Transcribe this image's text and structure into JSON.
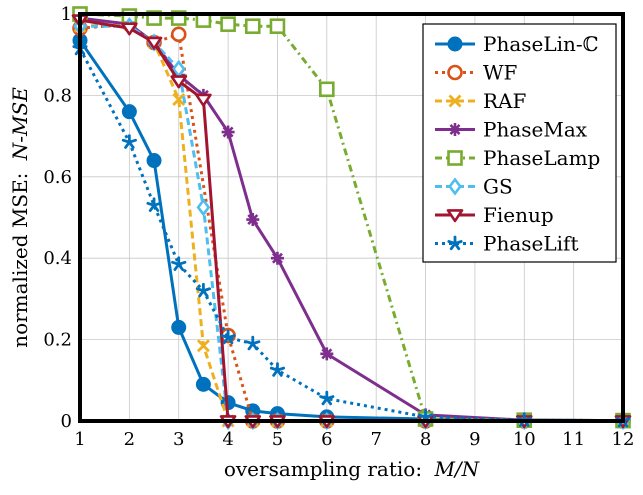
{
  "chart_data": {
    "type": "line",
    "title": "",
    "xlabel_text": "oversampling ratio:",
    "xlabel_math": "M/N",
    "ylabel_text": "normalized MSE:",
    "ylabel_math": "N-MSE",
    "xlim": [
      1,
      12
    ],
    "ylim": [
      0,
      1
    ],
    "xticks": [
      1,
      2,
      3,
      4,
      5,
      6,
      7,
      8,
      9,
      10,
      11,
      12
    ],
    "yticks": [
      0,
      0.2,
      0.4,
      0.6,
      0.8,
      1
    ],
    "ytick_labels": [
      "0",
      "0.2",
      "0.4",
      "0.6",
      "0.8",
      "1"
    ],
    "grid": true,
    "legend_position": "top-right",
    "series": [
      {
        "name": "PhaseLin-ℂ",
        "color": "#0072BD",
        "marker": "circle-filled",
        "dash": "solid",
        "x": [
          1,
          2,
          2.5,
          3,
          3.5,
          4,
          4.5,
          5,
          6,
          8,
          10,
          12
        ],
        "y": [
          0.935,
          0.76,
          0.64,
          0.23,
          0.09,
          0.045,
          0.025,
          0.018,
          0.01,
          0.005,
          0.002,
          0.001
        ]
      },
      {
        "name": "WF",
        "color": "#D95319",
        "marker": "circle-open",
        "dash": "dotted",
        "x": [
          1,
          2,
          2.5,
          3,
          4,
          4.5,
          5,
          6,
          8,
          10,
          12
        ],
        "y": [
          0.965,
          0.975,
          0.93,
          0.95,
          0.21,
          0,
          0,
          0,
          0,
          0,
          0
        ]
      },
      {
        "name": "RAF",
        "color": "#EDB120",
        "marker": "x",
        "dash": "dashed",
        "x": [
          1,
          2,
          2.5,
          3,
          3.5,
          4,
          4.5,
          5,
          6,
          8,
          10,
          12
        ],
        "y": [
          0.97,
          0.975,
          0.93,
          0.79,
          0.185,
          0,
          0,
          0,
          0,
          0,
          0,
          0
        ]
      },
      {
        "name": "PhaseMax",
        "color": "#7E2F8E",
        "marker": "asterisk",
        "dash": "solid",
        "x": [
          1,
          2,
          2.5,
          3,
          3.5,
          4,
          4.5,
          5,
          6,
          8,
          10,
          12
        ],
        "y": [
          0.99,
          0.975,
          0.93,
          0.85,
          0.8,
          0.71,
          0.495,
          0.4,
          0.165,
          0.015,
          0.002,
          0.001
        ]
      },
      {
        "name": "PhaseLamp",
        "color": "#77AC30",
        "marker": "square-open",
        "dash": "dashdot",
        "x": [
          1,
          2,
          2.5,
          3,
          3.5,
          4,
          4.5,
          5,
          6,
          8,
          10,
          12
        ],
        "y": [
          1.0,
          0.995,
          0.99,
          0.99,
          0.985,
          0.975,
          0.97,
          0.97,
          0.815,
          0.005,
          0.002,
          0.001
        ]
      },
      {
        "name": "GS",
        "color": "#4DBEEE",
        "marker": "diamond-open",
        "dash": "dashed",
        "x": [
          1,
          2,
          2.5,
          3,
          3.5,
          4,
          4.5,
          5,
          6,
          8,
          10,
          12
        ],
        "y": [
          0.97,
          0.97,
          0.93,
          0.865,
          0.525,
          0,
          0,
          0,
          0,
          0,
          0,
          0
        ]
      },
      {
        "name": "Fienup",
        "color": "#A2142F",
        "marker": "triangle-down-open",
        "dash": "solid",
        "x": [
          1,
          2,
          2.5,
          3,
          3.5,
          4,
          4.5,
          5,
          6,
          8,
          10,
          12
        ],
        "y": [
          0.985,
          0.965,
          0.93,
          0.835,
          0.79,
          0,
          0,
          0,
          0,
          0,
          0,
          0
        ]
      },
      {
        "name": "PhaseLift",
        "color": "#0072BD",
        "marker": "star",
        "dash": "dotted",
        "x": [
          1,
          2,
          2.5,
          3,
          3.5,
          4,
          4.5,
          5,
          6,
          8,
          10,
          12
        ],
        "y": [
          0.915,
          0.685,
          0.53,
          0.385,
          0.32,
          0.205,
          0.19,
          0.125,
          0.055,
          0.01,
          0.002,
          0.001
        ]
      }
    ]
  }
}
